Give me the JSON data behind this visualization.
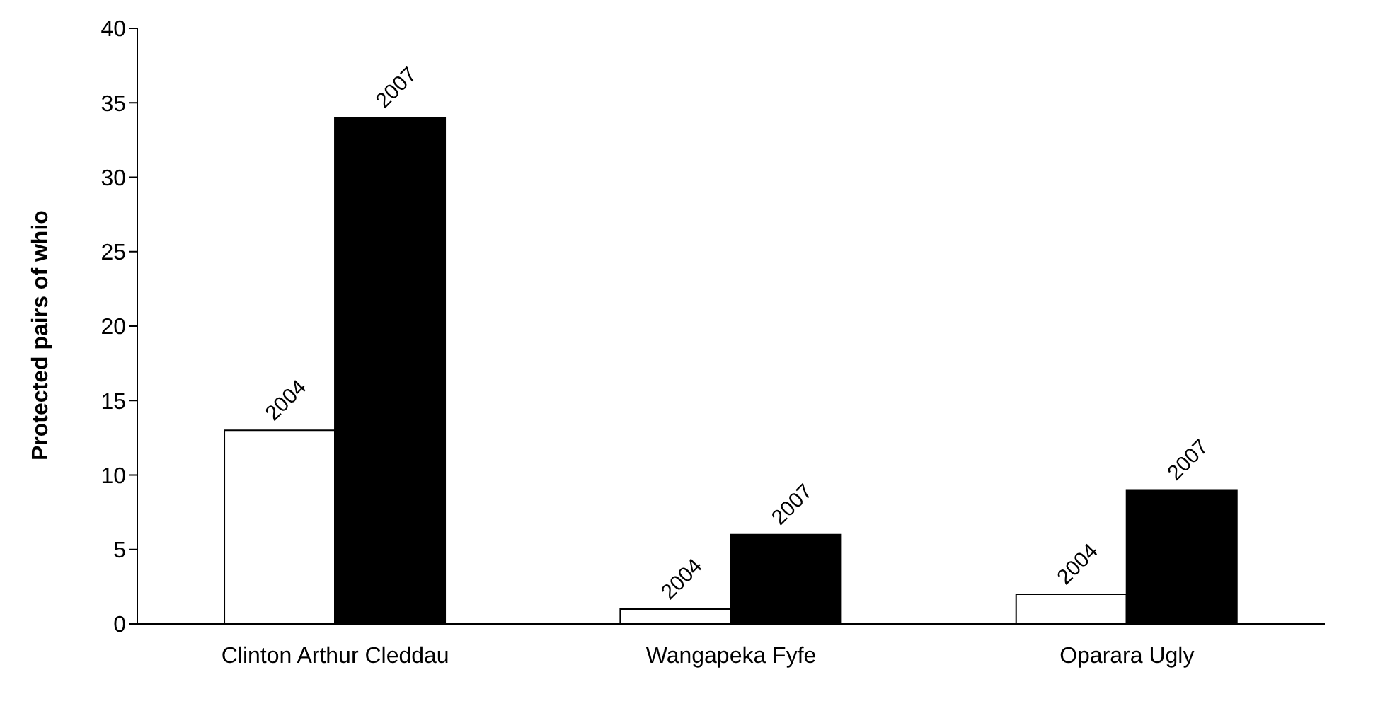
{
  "chart_data": {
    "type": "bar",
    "ylabel": "Protected pairs of whio",
    "categories": [
      "Clinton Arthur Cleddau",
      "Wangapeka Fyfe",
      "Oparara Ugly"
    ],
    "series": [
      {
        "name": "2004",
        "color": "#ffffff",
        "values": [
          13,
          1,
          2
        ]
      },
      {
        "name": "2007",
        "color": "#000000",
        "values": [
          34,
          6,
          9
        ]
      }
    ],
    "ylim": [
      0,
      40
    ],
    "yticks": [
      0,
      5,
      10,
      15,
      20,
      25,
      30,
      35,
      40
    ],
    "grid": false,
    "legend": false
  }
}
